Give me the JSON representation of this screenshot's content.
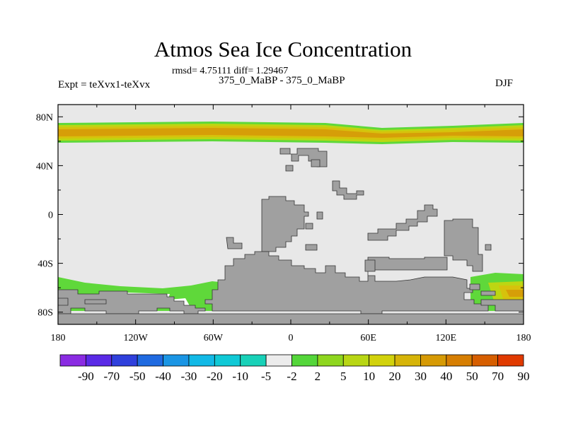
{
  "chart_data": {
    "type": "heatmap",
    "title": "Atmos Sea Ice Concentration",
    "stats_line": "rmsd= 4.75111 diff= 1.29467",
    "subtitle": "375_0_MaBP - 375_0_MaBP",
    "left_label": "Expt = teXvx1-teXvx",
    "right_label": "DJF",
    "x_ticks": [
      "180",
      "120W",
      "60W",
      "0",
      "60E",
      "120E",
      "180"
    ],
    "y_ticks": [
      "80N",
      "40N",
      "0",
      "40S",
      "80S"
    ],
    "xlim": [
      -180,
      180
    ],
    "ylim": [
      -90,
      90
    ],
    "colorbar": {
      "labels": [
        "-90",
        "-70",
        "-50",
        "-40",
        "-30",
        "-20",
        "-10",
        "-5",
        "-2",
        "2",
        "5",
        "10",
        "20",
        "30",
        "40",
        "50",
        "70",
        "90"
      ],
      "colors": [
        "#8a2be2",
        "#5a2ae6",
        "#2f40dc",
        "#1f6ae0",
        "#1a95e4",
        "#12b9e6",
        "#10c9d6",
        "#18d1b8",
        "#ececec",
        "#54d63a",
        "#8ed61e",
        "#b8d614",
        "#d2d20c",
        "#d6b408",
        "#d69a04",
        "#d67e02",
        "#d65e00",
        "#e03a00"
      ]
    },
    "colors": {
      "background": "#e8e8e8",
      "land": "#a0a0a0",
      "green": "#5fd83a",
      "yellow_green": "#bdd612",
      "yellow": "#d6c20c",
      "orange": "#d69e08",
      "white": "#ffffff"
    }
  }
}
